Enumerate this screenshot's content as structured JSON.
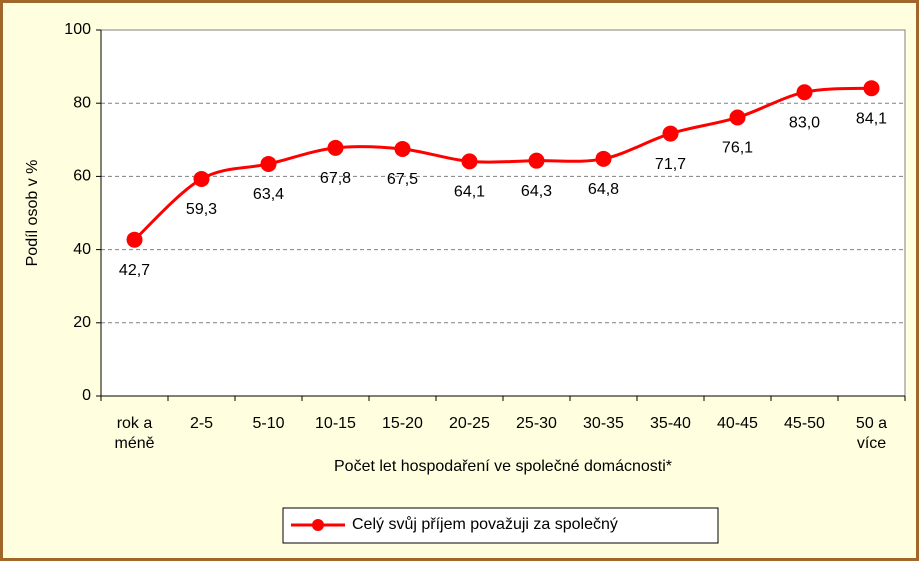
{
  "chart_data": {
    "type": "line",
    "x_label": "Počet let hospodaření ve společné domácnosti*",
    "y_label": "Podíl osob v %",
    "categories": [
      "rok a méně",
      "2-5",
      "5-10",
      "10-15",
      "15-20",
      "20-25",
      "25-30",
      "30-35",
      "35-40",
      "40-45",
      "45-50",
      "50 a více"
    ],
    "series": [
      {
        "name": "Celý svůj příjem považuji za společný",
        "color": "#ff0000",
        "values": [
          42.7,
          59.3,
          63.4,
          67.8,
          67.5,
          64.1,
          64.3,
          64.8,
          71.7,
          76.1,
          83.0,
          84.1
        ],
        "value_labels": [
          "42,7",
          "59,3",
          "63,4",
          "67,8",
          "67,5",
          "64,1",
          "64,3",
          "64,8",
          "71,7",
          "76,1",
          "83,0",
          "84,1"
        ]
      }
    ],
    "ylim": [
      0,
      100
    ],
    "yticks": [
      0,
      20,
      40,
      60,
      80,
      100
    ],
    "grid": true,
    "legend": "bottom"
  }
}
